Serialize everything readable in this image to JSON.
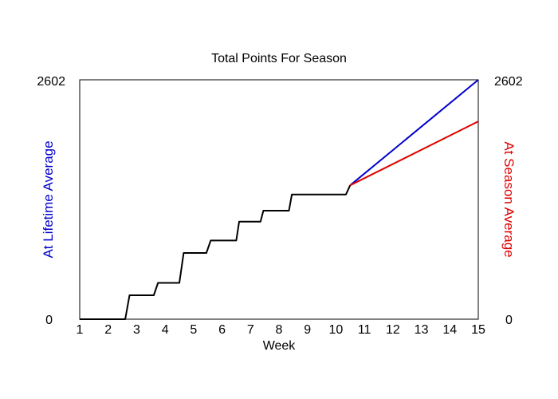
{
  "chart_data": {
    "type": "line",
    "title": "Total Points For Season",
    "xlabel": "Week",
    "ylabel_left": "At Lifetime Average",
    "ylabel_right": "At Season Average",
    "xlim": [
      1,
      15
    ],
    "ylim": [
      0,
      2602
    ],
    "y_tick_labels": [
      "0",
      "2602"
    ],
    "x_ticks": [
      1,
      2,
      3,
      4,
      5,
      6,
      7,
      8,
      9,
      10,
      11,
      12,
      13,
      14,
      15
    ],
    "grid": false,
    "series": [
      {
        "name": "",
        "color": "#000000",
        "step": true,
        "points": [
          [
            1,
            0
          ],
          [
            2.6,
            0
          ],
          [
            2.75,
            260
          ],
          [
            3.6,
            260
          ],
          [
            3.75,
            395
          ],
          [
            4.5,
            395
          ],
          [
            4.65,
            720
          ],
          [
            5.45,
            720
          ],
          [
            5.6,
            855
          ],
          [
            6.5,
            855
          ],
          [
            6.6,
            1060
          ],
          [
            7.35,
            1060
          ],
          [
            7.45,
            1180
          ],
          [
            8.35,
            1180
          ],
          [
            8.45,
            1355
          ],
          [
            10.35,
            1355
          ],
          [
            10.5,
            1455
          ]
        ]
      },
      {
        "name": "At Lifetime Average",
        "color": "#0000cc",
        "points": [
          [
            10.5,
            1455
          ],
          [
            15,
            2602
          ]
        ]
      },
      {
        "name": "At Season Average",
        "color": "#e00000",
        "points": [
          [
            10.5,
            1455
          ],
          [
            15,
            2150
          ]
        ]
      }
    ]
  }
}
